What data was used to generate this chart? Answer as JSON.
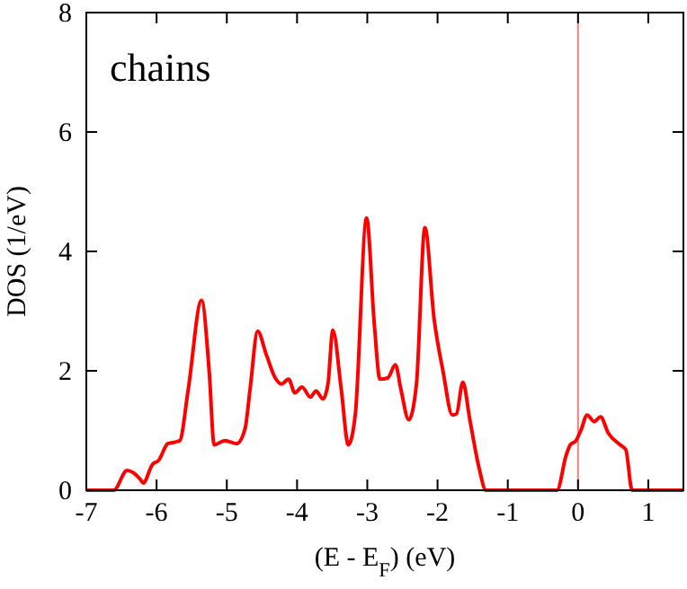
{
  "chart_data": {
    "type": "line",
    "xlabel": "(E - E$_{F}$) (eV)",
    "ylabel": "DOS (1/eV)",
    "annotations": [
      "chains"
    ],
    "xlim": [
      -7,
      1.5
    ],
    "xticks": [
      -7,
      -6,
      -5,
      -4,
      -3,
      -2,
      -1,
      0,
      1
    ],
    "ylim": [
      0,
      8
    ],
    "yticks": [
      0,
      2,
      4,
      6,
      8
    ],
    "grid": false,
    "marker": "none",
    "line_style": "solid",
    "ref_lines": [
      {
        "axis": "x",
        "value": 0,
        "color": "#f08080"
      }
    ],
    "series": [
      {
        "color": "#ff0000",
        "x": [
          -7,
          -6.61,
          -6.42,
          -6.23,
          -6.19,
          -6.06,
          -5.97,
          -5.84,
          -5.76,
          -5.67,
          -5.55,
          -5.36,
          -5.25,
          -5.18,
          -5.03,
          -4.86,
          -4.74,
          -4.67,
          -4.56,
          -4.44,
          -4.31,
          -4.22,
          -4.12,
          -4.03,
          -3.93,
          -3.81,
          -3.73,
          -3.63,
          -3.56,
          -3.49,
          -3.37,
          -3.27,
          -3.17,
          -3.01,
          -2.9,
          -2.82,
          -2.71,
          -2.6,
          -2.52,
          -2.41,
          -2.3,
          -2.18,
          -2.05,
          -1.92,
          -1.79,
          -1.73,
          -1.64,
          -1.54,
          -1.41,
          -1.31,
          -0.3,
          -0.17,
          -0.11,
          -0.03,
          0.04,
          0.13,
          0.23,
          0.32,
          0.43,
          0.6,
          0.68,
          0.77,
          1.5
        ],
        "values": [
          0,
          0,
          0.33,
          0.18,
          0.12,
          0.43,
          0.5,
          0.78,
          0.8,
          0.83,
          1.68,
          3.18,
          1.98,
          0.76,
          0.83,
          0.78,
          1.03,
          1.68,
          2.66,
          2.28,
          1.88,
          1.78,
          1.86,
          1.63,
          1.73,
          1.56,
          1.66,
          1.53,
          1.78,
          2.68,
          1.68,
          0.76,
          1.28,
          4.56,
          2.78,
          1.86,
          1.88,
          2.1,
          1.68,
          1.18,
          1.78,
          4.4,
          2.88,
          1.98,
          1.26,
          1.28,
          1.81,
          1.18,
          0.38,
          0,
          0,
          0.58,
          0.76,
          0.83,
          1,
          1.26,
          1.15,
          1.23,
          0.96,
          0.76,
          0.68,
          0,
          0
        ]
      }
    ]
  }
}
